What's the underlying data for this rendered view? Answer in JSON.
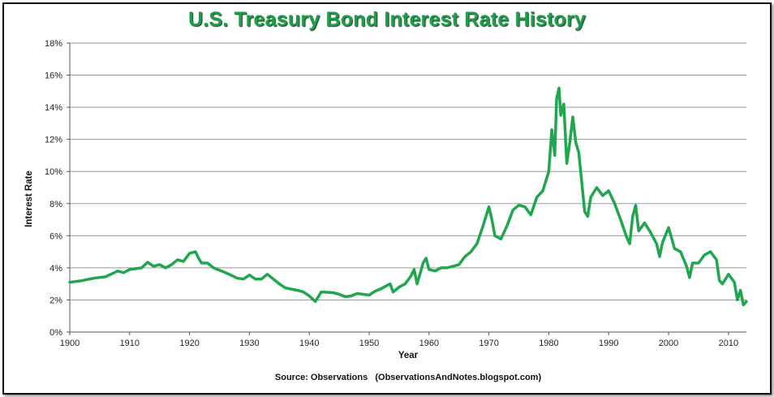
{
  "chart_data": {
    "type": "line",
    "title": "U.S. Treasury Bond Interest Rate History",
    "xlabel": "Year",
    "ylabel": "Interest Rate",
    "source": "Source: Observations   (ObservationsAndNotes.blogspot.com)",
    "xlim": [
      1900,
      2013
    ],
    "ylim": [
      0,
      18
    ],
    "x_ticks": [
      1900,
      1910,
      1920,
      1930,
      1940,
      1950,
      1960,
      1970,
      1980,
      1990,
      2000,
      2010
    ],
    "y_ticks": [
      "0%",
      "2%",
      "4%",
      "6%",
      "8%",
      "10%",
      "12%",
      "14%",
      "16%",
      "18%"
    ],
    "y_tick_values": [
      0,
      2,
      4,
      6,
      8,
      10,
      12,
      14,
      16,
      18
    ],
    "grid": "horizontal",
    "line_color": "#1fa64f",
    "series": [
      {
        "name": "",
        "x": [
          1900,
          1902,
          1904,
          1906,
          1908,
          1909,
          1910,
          1912,
          1913,
          1914,
          1915,
          1916,
          1917,
          1918,
          1919,
          1920,
          1921,
          1921.5,
          1922,
          1923,
          1924,
          1926,
          1928,
          1929,
          1930,
          1931,
          1932,
          1933,
          1935,
          1936,
          1938,
          1939,
          1940,
          1941,
          1942,
          1944,
          1945,
          1946,
          1947,
          1948,
          1950,
          1951,
          1952,
          1953,
          1953.5,
          1954,
          1955,
          1956,
          1957,
          1957.5,
          1958,
          1959,
          1959.5,
          1960,
          1961,
          1962,
          1963,
          1965,
          1966,
          1967,
          1968,
          1969,
          1970,
          1970.5,
          1971,
          1972,
          1973,
          1974,
          1975,
          1976,
          1977,
          1978,
          1979,
          1980,
          1980.5,
          1981,
          1981.3,
          1981.7,
          1982,
          1982.5,
          1983,
          1983.5,
          1984,
          1984.5,
          1985,
          1986,
          1986.5,
          1987,
          1988,
          1989,
          1990,
          1991,
          1992,
          1993,
          1993.5,
          1994,
          1994.5,
          1995,
          1996,
          1997,
          1998,
          1998.5,
          1999,
          2000,
          2001,
          2002,
          2003,
          2003.5,
          2004,
          2005,
          2006,
          2007,
          2008,
          2008.5,
          2009,
          2010,
          2011,
          2011.5,
          2012,
          2012.5,
          2013
        ],
        "y": [
          3.1,
          3.2,
          3.35,
          3.45,
          3.8,
          3.7,
          3.9,
          4.0,
          4.35,
          4.1,
          4.2,
          4.0,
          4.2,
          4.5,
          4.4,
          4.9,
          5.0,
          4.6,
          4.3,
          4.3,
          4.0,
          3.7,
          3.35,
          3.3,
          3.55,
          3.3,
          3.3,
          3.6,
          3.0,
          2.75,
          2.6,
          2.5,
          2.25,
          1.9,
          2.5,
          2.45,
          2.35,
          2.2,
          2.25,
          2.4,
          2.3,
          2.55,
          2.7,
          2.9,
          3.0,
          2.5,
          2.8,
          3.0,
          3.5,
          3.9,
          3.0,
          4.3,
          4.6,
          3.9,
          3.8,
          4.0,
          4.0,
          4.2,
          4.7,
          5.0,
          5.5,
          6.6,
          7.8,
          7.0,
          6.0,
          5.8,
          6.6,
          7.6,
          7.9,
          7.8,
          7.3,
          8.4,
          8.8,
          10.0,
          12.6,
          11.0,
          14.5,
          15.2,
          13.5,
          14.2,
          10.5,
          11.8,
          13.4,
          11.8,
          11.2,
          7.5,
          7.2,
          8.4,
          9.0,
          8.5,
          8.8,
          8.0,
          7.0,
          5.9,
          5.5,
          7.2,
          7.9,
          6.3,
          6.8,
          6.2,
          5.5,
          4.7,
          5.6,
          6.5,
          5.2,
          5.0,
          4.1,
          3.4,
          4.3,
          4.3,
          4.8,
          5.0,
          4.5,
          3.2,
          3.0,
          3.6,
          3.1,
          2.0,
          2.6,
          1.7,
          1.9
        ]
      }
    ]
  }
}
